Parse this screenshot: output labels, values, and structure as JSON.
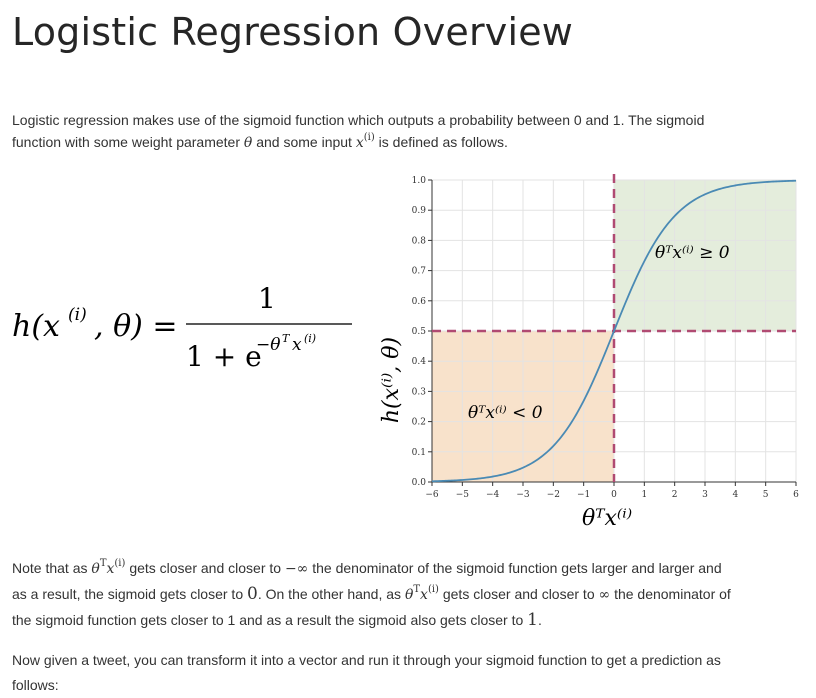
{
  "title": "Logistic Regression Overview",
  "intro": {
    "p1": "Logistic regression makes use of the sigmoid function which outputs a probability between 0 and 1. The sigmoid",
    "p2a": "function with some weight parameter",
    "theta": "θ",
    "p2b": "and some input",
    "x": "x",
    "sup_i": "(i)",
    "p2c": "is defined as follows."
  },
  "formula": {
    "lhs_h": "h(x",
    "lhs_sup": "(i)",
    "lhs_rest": ", θ) =",
    "numerator": "1",
    "denominator_base": "1 + e",
    "denominator_exp": "−θ",
    "denominator_exp_T": "T",
    "denominator_exp_x": "x",
    "denominator_exp_sup": "(i)"
  },
  "chart_data": {
    "type": "line",
    "series": [
      {
        "x": [
          -6,
          -5,
          -4,
          -3,
          -2,
          -1,
          0,
          1,
          2,
          3,
          4,
          5,
          6
        ],
        "values": [
          0.002,
          0.007,
          0.018,
          0.047,
          0.119,
          0.269,
          0.5,
          0.731,
          0.881,
          0.953,
          0.982,
          0.993,
          0.998
        ]
      }
    ],
    "xlim": [
      -6,
      6
    ],
    "ylim": [
      0.0,
      1.0
    ],
    "x_ticks": [
      "−6",
      "−5",
      "−4",
      "−3",
      "−2",
      "−1",
      "0",
      "1",
      "2",
      "3",
      "4",
      "5",
      "6"
    ],
    "y_ticks": [
      "0.0",
      "0.1",
      "0.2",
      "0.3",
      "0.4",
      "0.5",
      "0.6",
      "0.7",
      "0.8",
      "0.9",
      "1.0"
    ],
    "xlabel": "θᵀx⁽ⁱ⁾",
    "ylabel": "h(x⁽ⁱ⁾, θ)",
    "annotations": [
      "θᵀx⁽ⁱ⁾ ≥ 0",
      "θᵀx⁽ⁱ⁾ < 0"
    ],
    "grid": true,
    "colors": {
      "curve": "#4a8ab4",
      "positive_region": "#e4eddc",
      "negative_region": "#f8e2cb",
      "threshold": "#b04a72"
    }
  },
  "note": {
    "a1": "Note that as",
    "a2": "gets closer and closer to",
    "neg_inf": "−∞",
    "a3": "the denominator of the sigmoid function gets larger and larger and",
    "b1": "as a result, the sigmoid gets closer to",
    "zero": "0",
    "b2": ". On the other hand, as",
    "b3": "gets closer and closer to",
    "inf": "∞",
    "b4": "the denominator of",
    "c1": "the sigmoid function gets closer to 1 and as a result the sigmoid also gets closer to",
    "one": "1",
    "c2": "."
  },
  "final": {
    "l1": "Now given a tweet, you can transform it into a vector and run it through your sigmoid function to get a prediction as",
    "l2": "follows:"
  }
}
